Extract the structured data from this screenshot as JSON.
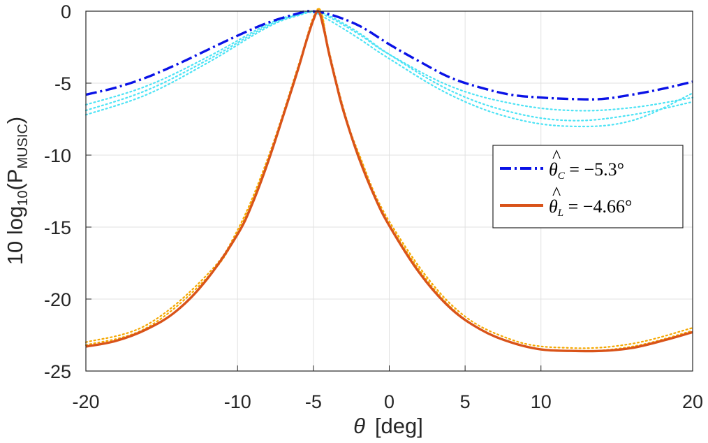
{
  "chart_data": {
    "type": "line",
    "title": "",
    "xlabel": "[deg]",
    "xlabel_symbol": "θ",
    "ylabel": "10  log",
    "ylabel_sub": "10",
    "ylabel_paren_open": "(P",
    "ylabel_psub": "MUSIC",
    "ylabel_close": ")",
    "xlim": [
      -20,
      20
    ],
    "ylim": [
      -25,
      0
    ],
    "xticks": [
      -20,
      -10,
      -5,
      0,
      5,
      10,
      20
    ],
    "yticks": [
      0,
      -5,
      -10,
      -15,
      -20,
      -25
    ],
    "grid": true,
    "legend_position": "right, middle",
    "series": [
      {
        "name": "θ̂C = −5.3°",
        "legend": {
          "lhs": "θ",
          "sub": "C",
          "rhs": " = −5.3°"
        },
        "color": "#0a12e6",
        "style": "dash-dot",
        "x": [
          -20,
          -18,
          -16,
          -14,
          -12,
          -10,
          -8,
          -6,
          -5.3,
          -4,
          -2,
          0,
          2,
          4,
          6,
          8,
          10,
          12,
          14,
          16,
          18,
          20
        ],
        "y": [
          -5.8,
          -5.3,
          -4.6,
          -3.7,
          -2.7,
          -1.7,
          -0.8,
          -0.15,
          0.0,
          -0.2,
          -1.0,
          -2.3,
          -3.5,
          -4.6,
          -5.3,
          -5.8,
          -6.0,
          -6.1,
          -6.1,
          -5.8,
          -5.4,
          -4.9
        ]
      },
      {
        "name": "θ̂L = −4.66°",
        "legend": {
          "lhs": "θ",
          "sub": "L",
          "rhs": " = −4.66°"
        },
        "color": "#d95319",
        "style": "solid",
        "x": [
          -20,
          -18,
          -16,
          -14,
          -12,
          -10,
          -9,
          -8,
          -7,
          -6,
          -5.5,
          -5,
          -4.66,
          -4.3,
          -4,
          -3.5,
          -3,
          -2,
          -1,
          0,
          2,
          4,
          6,
          8,
          10,
          12,
          14,
          16,
          18,
          20
        ],
        "y": [
          -23.3,
          -22.9,
          -22.1,
          -20.8,
          -18.6,
          -15.5,
          -13.3,
          -10.5,
          -7.3,
          -4.0,
          -2.2,
          -0.6,
          0.0,
          -1.3,
          -2.8,
          -5.0,
          -7.0,
          -10.2,
          -12.8,
          -14.9,
          -18.2,
          -20.6,
          -22.1,
          -23.0,
          -23.5,
          -23.6,
          -23.6,
          -23.4,
          -22.9,
          -22.3
        ]
      }
    ],
    "realizations": [
      {
        "color": "#4de3f5",
        "style": "dotted",
        "x": [
          -20,
          -16,
          -12,
          -8,
          -6,
          -5,
          -4,
          -2,
          0,
          4,
          8,
          12,
          16,
          20
        ],
        "y": [
          [
            -6.5,
            -5.2,
            -3.2,
            -0.9,
            -0.2,
            -0.05,
            -0.4,
            -1.6,
            -3.0,
            -5.2,
            -6.4,
            -6.9,
            -6.7,
            -6.0
          ],
          [
            -6.9,
            -5.5,
            -3.4,
            -1.0,
            -0.25,
            0.0,
            -0.3,
            -1.5,
            -3.0,
            -5.5,
            -7.0,
            -7.6,
            -7.2,
            -6.3
          ],
          [
            -7.2,
            -5.8,
            -3.6,
            -1.1,
            -0.3,
            -0.1,
            -0.6,
            -1.9,
            -3.3,
            -5.8,
            -7.4,
            -8.0,
            -7.6,
            -5.7
          ]
        ]
      },
      {
        "color": "#f5a800",
        "style": "dotted",
        "x": [
          -20,
          -16,
          -12,
          -10,
          -8,
          -6,
          -5,
          -4.5,
          -4,
          -3,
          -2,
          0,
          4,
          8,
          12,
          16,
          20
        ],
        "y": [
          [
            -23.0,
            -21.8,
            -18.3,
            -15.2,
            -10.2,
            -3.8,
            -0.4,
            -0.1,
            -2.6,
            -6.8,
            -9.9,
            -14.6,
            -20.3,
            -22.8,
            -23.4,
            -23.1,
            -22.0
          ],
          [
            -23.2,
            -22.0,
            -18.5,
            -15.4,
            -10.4,
            -3.9,
            -0.6,
            0.0,
            -2.7,
            -6.9,
            -10.0,
            -14.8,
            -20.5,
            -23.0,
            -23.6,
            -23.3,
            -22.2
          ]
        ]
      }
    ]
  }
}
